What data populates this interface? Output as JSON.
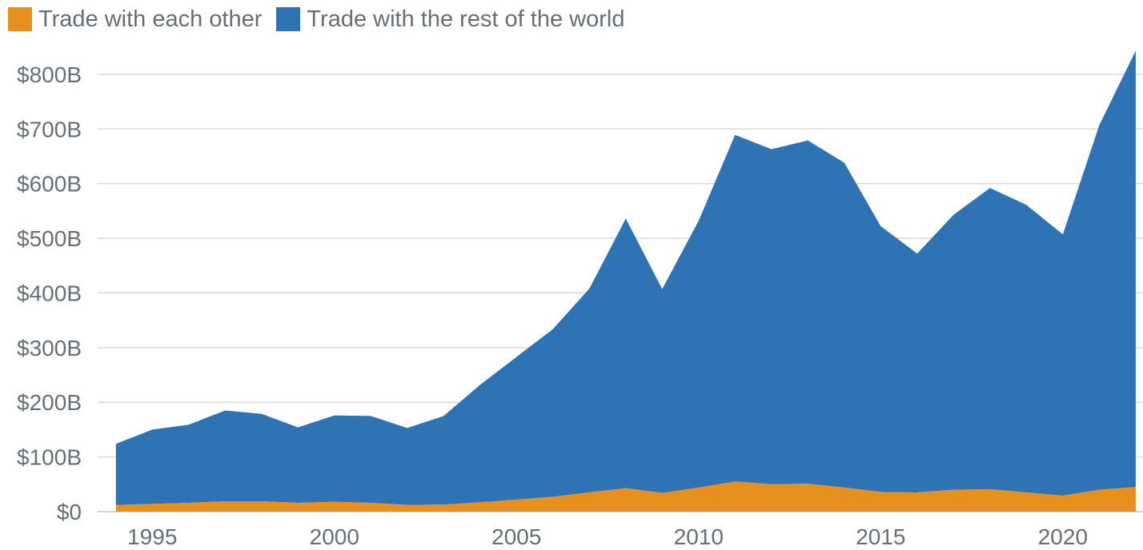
{
  "chart_data": {
    "type": "area",
    "stacked": true,
    "title": "",
    "xlabel": "",
    "ylabel": "",
    "x": [
      1994,
      1995,
      1996,
      1997,
      1998,
      1999,
      2000,
      2001,
      2002,
      2003,
      2004,
      2005,
      2006,
      2007,
      2008,
      2009,
      2010,
      2011,
      2012,
      2013,
      2014,
      2015,
      2016,
      2017,
      2018,
      2019,
      2020,
      2021,
      2022
    ],
    "series": [
      {
        "name": "Trade with each other",
        "color": "#e8901e",
        "values": [
          12,
          14,
          16,
          19,
          19,
          16,
          18,
          16,
          12,
          13,
          17,
          22,
          27,
          35,
          43,
          34,
          44,
          55,
          50,
          51,
          44,
          36,
          35,
          40,
          41,
          35,
          29,
          40,
          45
        ]
      },
      {
        "name": "Trade with the rest of the world",
        "color": "#2e74b5",
        "values": [
          112,
          136,
          143,
          166,
          160,
          138,
          158,
          159,
          141,
          162,
          215,
          261,
          307,
          373,
          493,
          373,
          488,
          634,
          613,
          628,
          594,
          486,
          437,
          503,
          551,
          526,
          478,
          667,
          798
        ]
      }
    ],
    "ylim": [
      0,
      870
    ],
    "xlim": [
      1993.5,
      2022.2
    ],
    "yticks": [
      0,
      100,
      200,
      300,
      400,
      500,
      600,
      700,
      800
    ],
    "ytick_labels": [
      "$0",
      "$100B",
      "$200B",
      "$300B",
      "$400B",
      "$500B",
      "$600B",
      "$700B",
      "$800B"
    ],
    "xticks": [
      1995,
      2000,
      2005,
      2010,
      2015,
      2020
    ],
    "xtick_labels": [
      "1995",
      "2000",
      "2005",
      "2010",
      "2015",
      "2020"
    ],
    "grid": true,
    "legend_position": "top-left",
    "gridline_color": "#d9d9d9",
    "text_color": "#666f75"
  }
}
